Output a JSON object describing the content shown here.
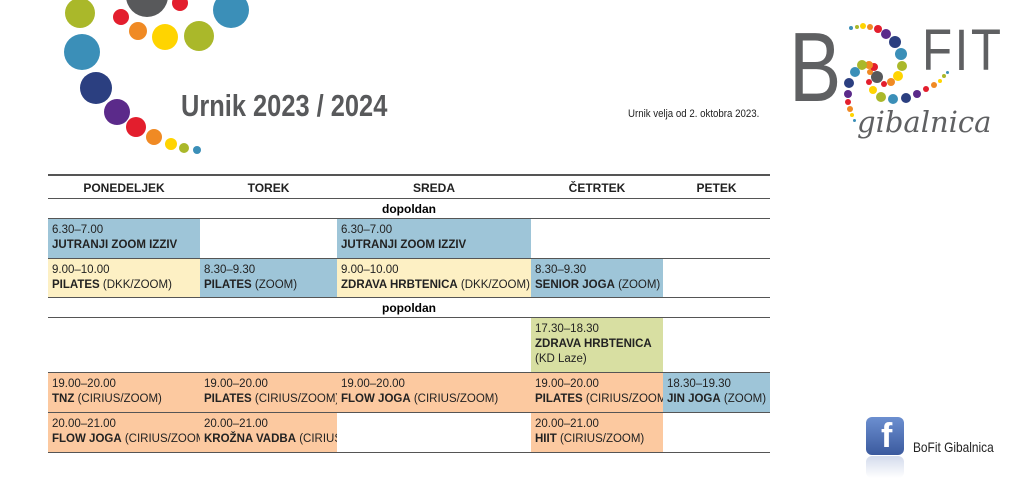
{
  "header": {
    "title": "Urnik 2023 / 2024",
    "validity": "Urnik velja od 2. oktobra 2023."
  },
  "logo": {
    "b": "B",
    "fit": "FIT",
    "sub": "gibalnica"
  },
  "colors": {
    "blue": "#9ec5d8",
    "yellow": "#fdf0c4",
    "orange": "#fcc9a0",
    "green": "#d8dfa2"
  },
  "days": [
    "PONEDELJEK",
    "TOREK",
    "SREDA",
    "ČETRTEK",
    "PETEK"
  ],
  "sections": {
    "morning": "dopoldan",
    "afternoon": "popoldan"
  },
  "rows": [
    [
      {
        "time": "6.30–7.00",
        "name": "JUTRANJI ZOOM IZZIV",
        "note": "",
        "color": "blue"
      },
      null,
      {
        "time": "6.30–7.00",
        "name": "JUTRANJI ZOOM IZZIV",
        "note": "",
        "color": "blue"
      },
      null,
      null
    ],
    [
      {
        "time": "9.00–10.00",
        "name": "PILATES",
        "note": "(DKK/ZOOM)",
        "color": "yellow"
      },
      {
        "time": "8.30–9.30",
        "name": "PILATES",
        "note": "(ZOOM)",
        "color": "blue"
      },
      {
        "time": "9.00–10.00",
        "name": "ZDRAVA HRBTENICA",
        "note": "(DKK/ZOOM)",
        "color": "yellow"
      },
      {
        "time": "8.30–9.30",
        "name": "SENIOR JOGA",
        "note": "(ZOOM)",
        "color": "blue"
      },
      null
    ],
    [
      null,
      null,
      null,
      {
        "time": "17.30–18.30",
        "name": "ZDRAVA HRBTENICA",
        "note": "(KD Laze)",
        "color": "green",
        "note_newline": true
      },
      null
    ],
    [
      {
        "time": "19.00–20.00",
        "name": "TNZ",
        "note": "(CIRIUS/ZOOM)",
        "color": "orange"
      },
      {
        "time": "19.00–20.00",
        "name": "PILATES",
        "note": "(CIRIUS/ZOOM)",
        "color": "orange"
      },
      {
        "time": "19.00–20.00",
        "name": "FLOW JOGA",
        "note": "(CIRIUS/ZOOM)",
        "color": "orange"
      },
      {
        "time": "19.00–20.00",
        "name": "PILATES",
        "note": "(CIRIUS/ZOOM)",
        "color": "orange"
      },
      {
        "time": "18.30–19.30",
        "name": "JIN JOGA",
        "note": "(ZOOM)",
        "color": "blue"
      }
    ],
    [
      {
        "time": "20.00–21.00",
        "name": "FLOW JOGA",
        "note": "(CIRIUS/ZOOM)",
        "color": "orange"
      },
      {
        "time": "20.00–21.00",
        "name": "KROŽNA VADBA",
        "note": "(CIRIUS)",
        "color": "orange"
      },
      null,
      {
        "time": "20.00–21.00",
        "name": "HIIT",
        "note": "(CIRIUS/ZOOM)",
        "color": "orange"
      },
      null
    ]
  ],
  "social": {
    "icon": "facebook-icon",
    "label": "BoFit Gibalnica"
  }
}
